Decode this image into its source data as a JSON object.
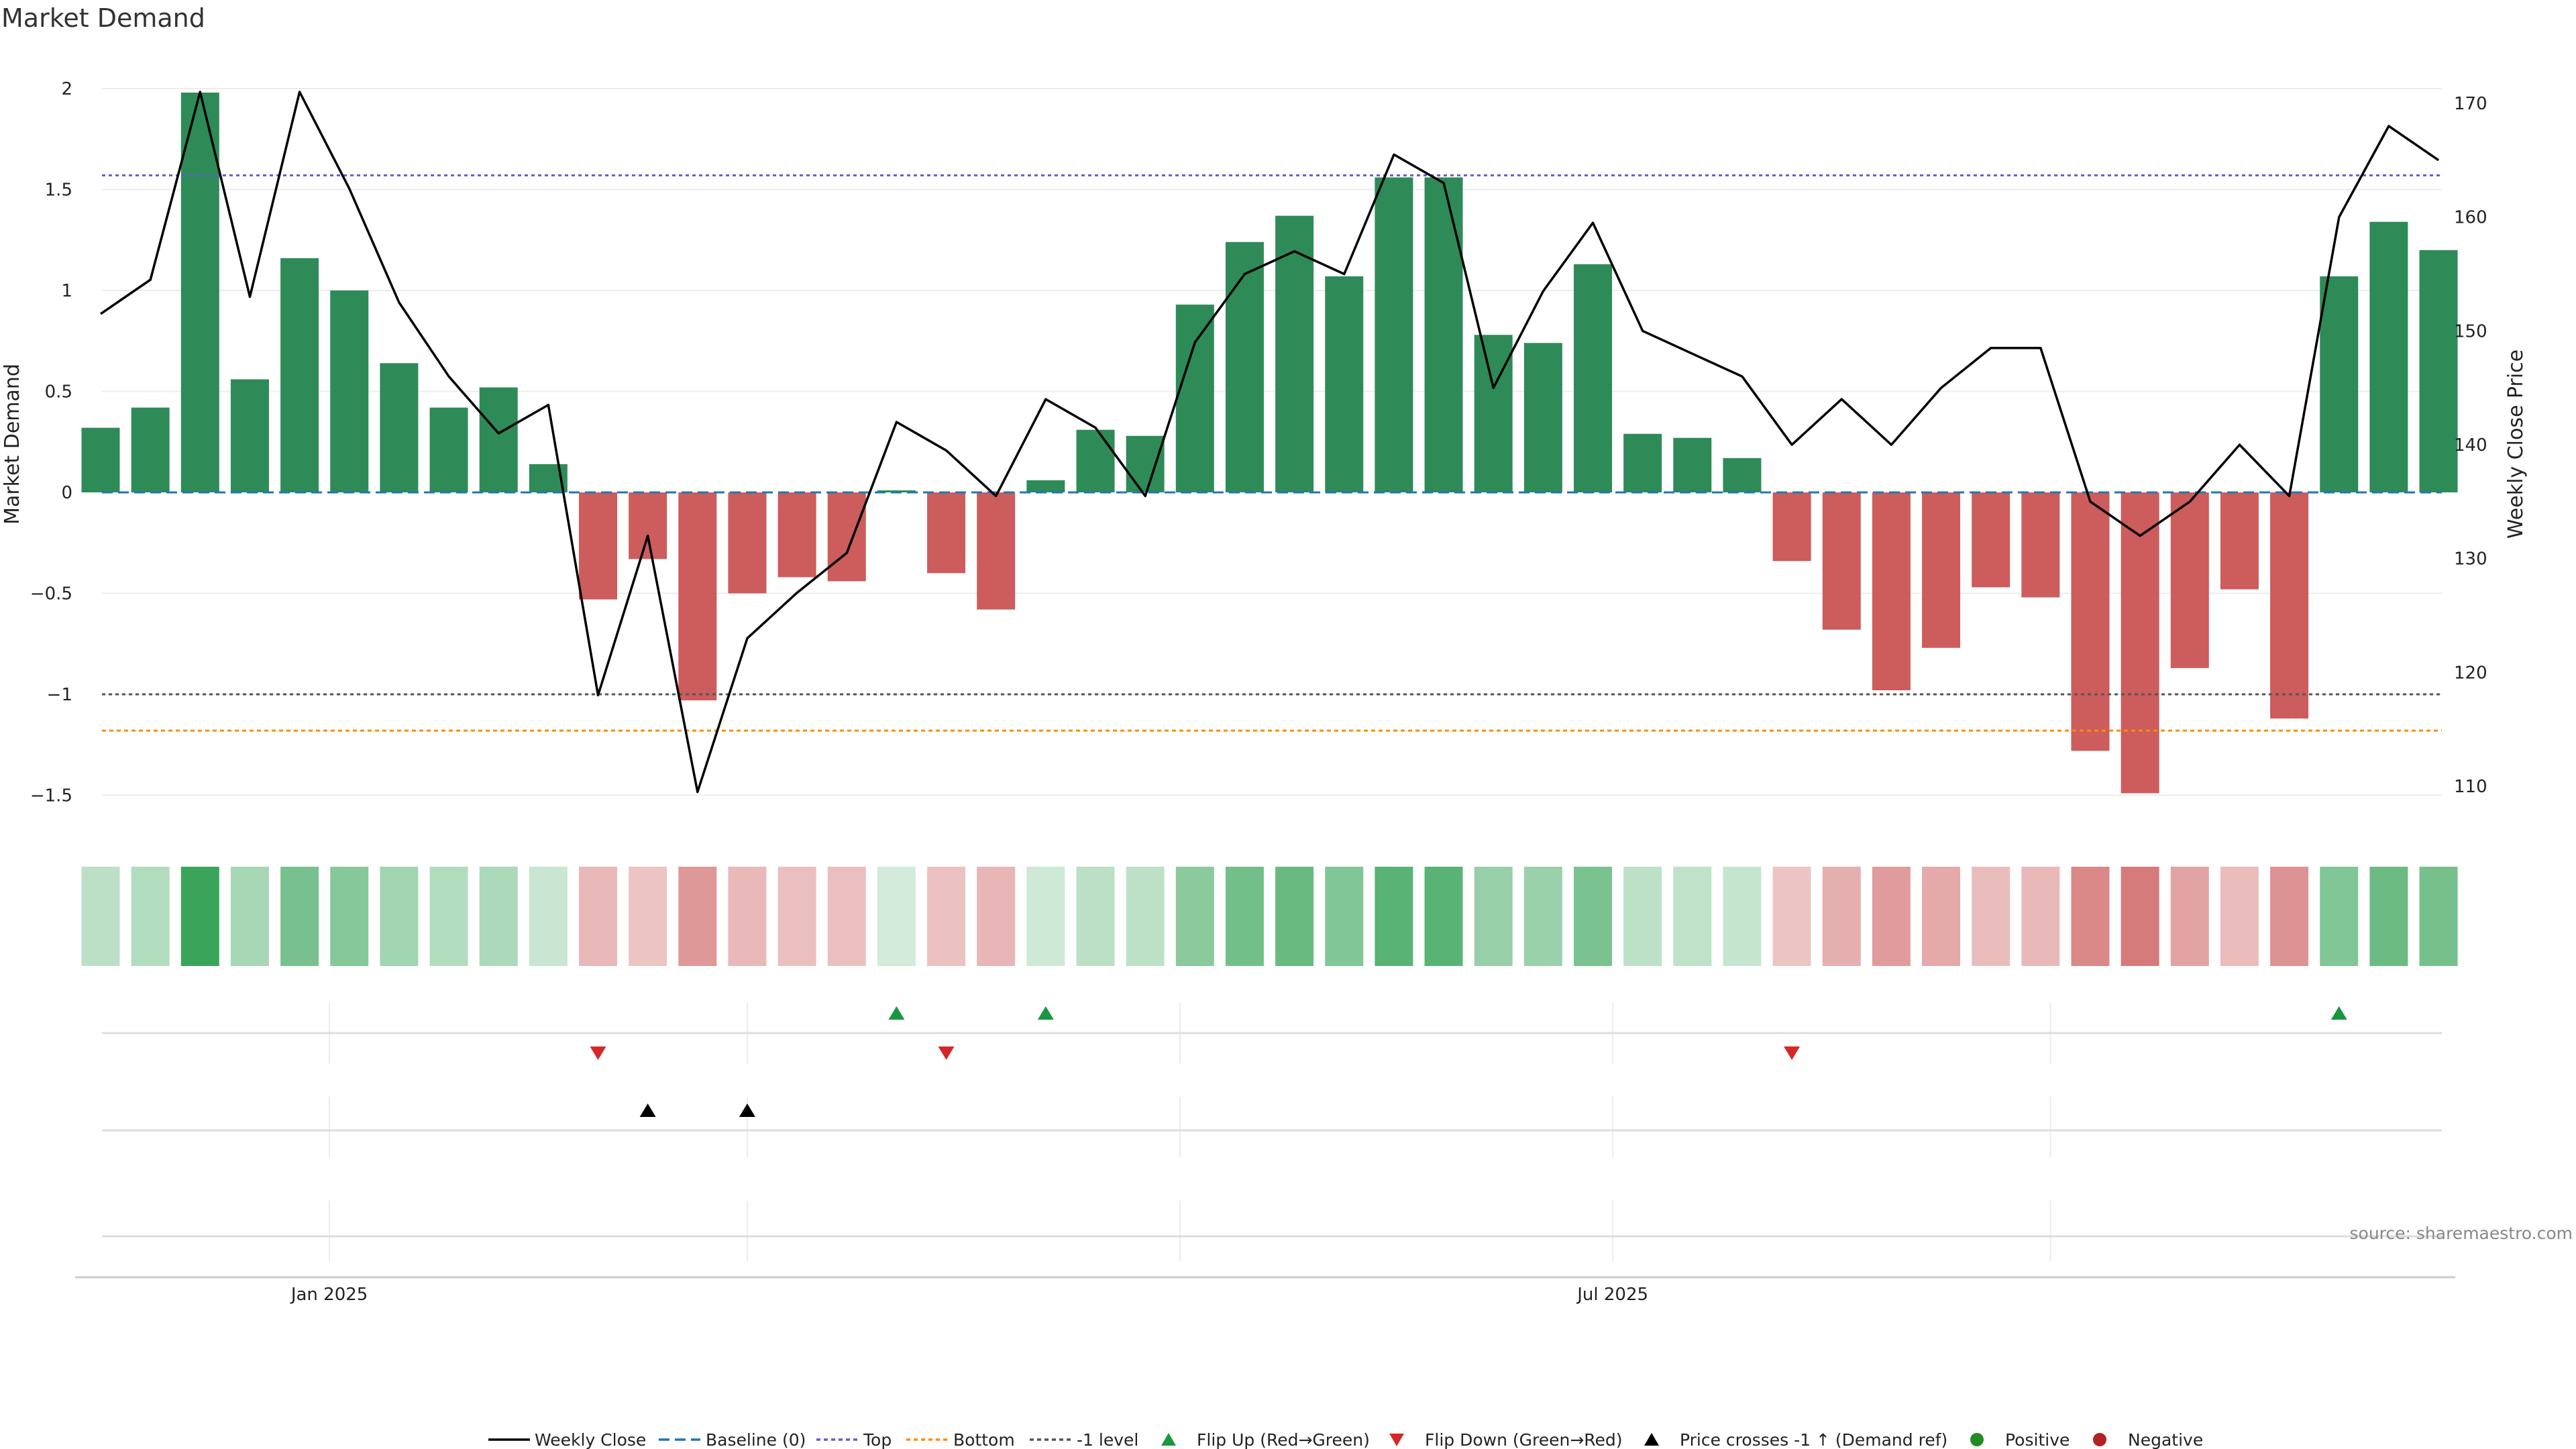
{
  "chart_data": {
    "type": "bar",
    "title": "Market Demand",
    "ylabel_left": "Market Demand",
    "ylabel_right": "Weekly Close Price",
    "ylim_left": [
      -1.68,
      2.12
    ],
    "ylim_right": [
      107,
      171
    ],
    "yticks_left": [
      2,
      1.5,
      1,
      0.5,
      0,
      -0.5,
      -1,
      -1.5
    ],
    "ytick_labels_left": [
      "2",
      "1.5",
      "1",
      "0.5",
      "0",
      "−0.5",
      "−1",
      "−1.5"
    ],
    "yticks_right": [
      170,
      160,
      150,
      140,
      130,
      120,
      110
    ],
    "ytick_labels_right": [
      "170",
      "160",
      "150",
      "140",
      "130",
      "120",
      "110"
    ],
    "x_tick_labels": [
      {
        "label": "Jan 2025",
        "week": 4.6
      },
      {
        "label": "Jul 2025",
        "week": 30.4
      }
    ],
    "x_gridline_weeks": [
      4.6,
      13.0,
      21.7,
      30.4,
      39.2
    ],
    "demand": [
      0.32,
      0.42,
      1.98,
      0.56,
      1.16,
      1.0,
      0.64,
      0.42,
      0.52,
      0.14,
      -0.53,
      -0.33,
      -1.03,
      -0.5,
      -0.42,
      -0.44,
      0.01,
      -0.4,
      -0.58,
      0.06,
      0.31,
      0.28,
      0.93,
      1.24,
      1.37,
      1.07,
      1.56,
      1.56,
      0.78,
      0.74,
      1.13,
      0.29,
      0.27,
      0.17,
      -0.34,
      -0.68,
      -0.98,
      -0.77,
      -0.47,
      -0.52,
      -1.28,
      -1.49,
      -0.87,
      -0.48,
      -1.12,
      1.07,
      1.34,
      1.2
    ],
    "weekly_close": [
      151.5,
      154.5,
      171.0,
      153.0,
      171.0,
      162.5,
      152.5,
      146.0,
      141.0,
      143.5,
      118.0,
      132.0,
      109.5,
      123.0,
      127.0,
      130.5,
      142.0,
      139.5,
      135.5,
      144.0,
      141.5,
      135.5,
      149.0,
      155.0,
      157.0,
      155.0,
      165.5,
      163.0,
      145.0,
      153.5,
      159.5,
      150.0,
      148.0,
      146.0,
      140.0,
      144.0,
      140.0,
      145.0,
      148.5,
      148.5,
      135.0,
      132.0,
      135.0,
      140.0,
      135.5,
      160.0,
      168.0,
      165.0
    ],
    "top_level": 1.57,
    "bottom_level": -1.18,
    "minus_one_level": -1.0,
    "flip_up_weeks": [
      16,
      19,
      45
    ],
    "flip_down_weeks": [
      10,
      17,
      34
    ],
    "price_cross_weeks": [
      11,
      13
    ],
    "legend": [
      "Weekly Close",
      "Baseline (0)",
      "Top",
      "Bottom",
      "-1 level",
      "Flip Up (Red→Green)",
      "Flip Down (Green→Red)",
      "Price crosses -1 ↑ (Demand ref)",
      "Positive",
      "Negative"
    ],
    "colors": {
      "positive_bar": "#2e8b57",
      "negative_bar": "#cd5c5c",
      "close_line": "#000000",
      "baseline": "#1f77b4",
      "top": "#6a5acd",
      "bottom": "#ff8c00",
      "minus_one": "#555555",
      "flip_up": "#1a9641",
      "flip_down": "#d62728",
      "price_cross": "#000000",
      "positive_dot": "#228b22",
      "negative_dot": "#b22222"
    }
  },
  "source": "source: sharemaestro.com"
}
